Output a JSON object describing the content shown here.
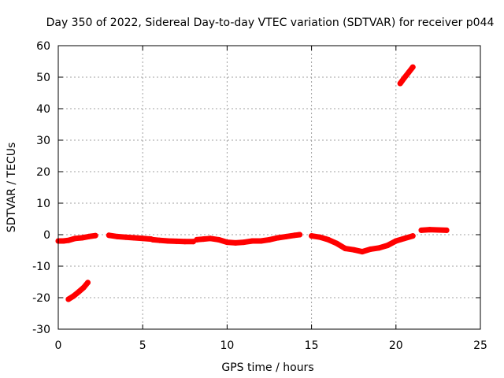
{
  "chart_data": {
    "type": "scatter",
    "title": "Day 350 of 2022, Sidereal Day-to-day VTEC variation (SDTVAR) for receiver p044",
    "xlabel": "GPS time / hours",
    "ylabel": "SDTVAR / TECUs",
    "xlim": [
      0,
      25
    ],
    "ylim": [
      -30,
      60
    ],
    "xticks": [
      0,
      5,
      10,
      15,
      20,
      25
    ],
    "yticks": [
      -30,
      -20,
      -10,
      0,
      10,
      20,
      30,
      40,
      50,
      60
    ],
    "xtick_labels": [
      "0",
      "5",
      "10",
      "15",
      "20",
      "25"
    ],
    "ytick_labels": [
      "-30",
      "-20",
      "-10",
      "0",
      "10",
      "20",
      "30",
      "40",
      "50",
      "60"
    ],
    "grid": true,
    "color": "#ff0000",
    "series": [
      {
        "name": "segment-main",
        "x": [
          0.0,
          0.3,
          0.6,
          1.0,
          1.4,
          1.8,
          2.2
        ],
        "y": [
          -2.0,
          -2.0,
          -1.8,
          -1.2,
          -1.0,
          -0.6,
          -0.3
        ]
      },
      {
        "name": "segment-mid-1",
        "x": [
          3.0,
          3.5,
          4.0,
          4.5,
          5.0,
          5.5
        ],
        "y": [
          -0.2,
          -0.6,
          -0.8,
          -1.0,
          -1.2,
          -1.4
        ]
      },
      {
        "name": "segment-mid-2",
        "x": [
          5.6,
          6.0,
          6.5,
          7.0,
          7.5,
          8.0
        ],
        "y": [
          -1.6,
          -1.8,
          -2.0,
          -2.1,
          -2.2,
          -2.2
        ]
      },
      {
        "name": "segment-mid-3",
        "x": [
          8.2,
          8.6,
          9.0,
          9.5,
          10.0,
          10.5,
          11.0,
          11.5,
          12.0,
          12.5,
          13.0,
          13.5,
          14.0,
          14.3
        ],
        "y": [
          -1.6,
          -1.4,
          -1.2,
          -1.6,
          -2.4,
          -2.6,
          -2.4,
          -2.0,
          -2.0,
          -1.6,
          -1.0,
          -0.6,
          -0.2,
          0.0
        ]
      },
      {
        "name": "segment-dip",
        "x": [
          15.0,
          15.5,
          16.0,
          16.5,
          17.0,
          17.5,
          18.0,
          18.5,
          19.0,
          19.5,
          20.0,
          20.5,
          21.0
        ],
        "y": [
          -0.4,
          -0.8,
          -1.6,
          -2.8,
          -4.4,
          -4.8,
          -5.4,
          -4.6,
          -4.2,
          -3.4,
          -2.0,
          -1.2,
          -0.4
        ]
      },
      {
        "name": "segment-late",
        "x": [
          21.5,
          22.0,
          22.5,
          23.0
        ],
        "y": [
          1.4,
          1.6,
          1.5,
          1.4
        ]
      },
      {
        "name": "segment-low-early",
        "x": [
          0.6,
          0.9,
          1.2,
          1.5,
          1.75
        ],
        "y": [
          -20.5,
          -19.5,
          -18.2,
          -16.8,
          -15.2
        ]
      },
      {
        "name": "segment-high-late",
        "x": [
          20.25,
          20.5,
          20.75,
          21.0
        ],
        "y": [
          48.0,
          49.8,
          51.5,
          53.2
        ]
      }
    ]
  }
}
